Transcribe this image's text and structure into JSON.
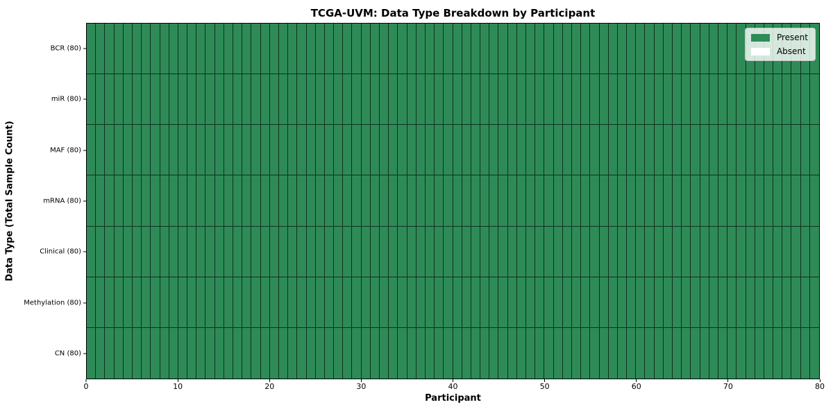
{
  "chart_data": {
    "type": "heatmap",
    "title": "TCGA-UVM: Data Type Breakdown by Participant",
    "xlabel": "Participant",
    "ylabel": "Data Type (Total Sample Count)",
    "xlim": [
      0,
      80
    ],
    "x_ticks": [
      0,
      10,
      20,
      30,
      40,
      50,
      60,
      70,
      80
    ],
    "n_participants": 80,
    "rows": [
      {
        "label": "BCR (80)",
        "data_type": "BCR",
        "total_samples": 80,
        "present_count": 80
      },
      {
        "label": "miR (80)",
        "data_type": "miR",
        "total_samples": 80,
        "present_count": 80
      },
      {
        "label": "MAF (80)",
        "data_type": "MAF",
        "total_samples": 80,
        "present_count": 80
      },
      {
        "label": "mRNA (80)",
        "data_type": "mRNA",
        "total_samples": 80,
        "present_count": 80
      },
      {
        "label": "Clinical (80)",
        "data_type": "Clinical",
        "total_samples": 80,
        "present_count": 80
      },
      {
        "label": "Methylation (80)",
        "data_type": "Methylation",
        "total_samples": 80,
        "present_count": 80
      },
      {
        "label": "CN (80)",
        "data_type": "CN",
        "total_samples": 80,
        "present_count": 80
      }
    ],
    "legend": {
      "position": "upper right",
      "entries": [
        {
          "label": "Present",
          "color": "#2e8b57"
        },
        {
          "label": "Absent",
          "color": "#ffffff"
        }
      ]
    },
    "colors": {
      "present": "#2e8b57",
      "absent": "#ffffff",
      "cell_border": "rgba(0,0,0,0.65)",
      "axis": "#000000",
      "background": "#ffffff"
    },
    "grid": true
  }
}
